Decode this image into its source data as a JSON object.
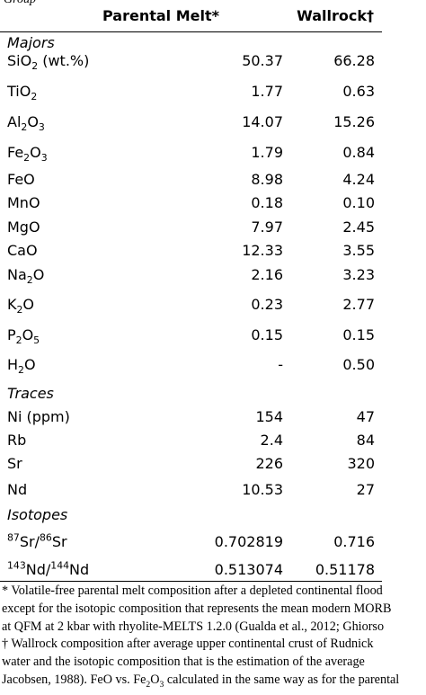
{
  "caption_fragment": "Group",
  "header": {
    "parental_melt": "Parental Melt*",
    "wallrock": "Wallrock†"
  },
  "sections": [
    {
      "title": "Majors",
      "rows": [
        {
          "parts": [
            [
              "SiO",
              ""
            ],
            [
              "2",
              "sub"
            ],
            [
              " (wt.%)",
              ""
            ]
          ],
          "parental_melt": "50.37",
          "wallrock": "66.28"
        },
        {
          "parts": [
            [
              "TiO",
              ""
            ],
            [
              "2",
              "sub"
            ]
          ],
          "parental_melt": "1.77",
          "wallrock": "0.63"
        },
        {
          "parts": [
            [
              "Al",
              ""
            ],
            [
              "2",
              "sub"
            ],
            [
              "O",
              ""
            ],
            [
              "3",
              "sub"
            ]
          ],
          "parental_melt": "14.07",
          "wallrock": "15.26"
        },
        {
          "parts": [
            [
              "Fe",
              ""
            ],
            [
              "2",
              "sub"
            ],
            [
              "O",
              ""
            ],
            [
              "3",
              "sub"
            ]
          ],
          "parental_melt": "1.79",
          "wallrock": "0.84"
        },
        {
          "parts": [
            [
              "FeO",
              ""
            ]
          ],
          "parental_melt": "8.98",
          "wallrock": "4.24"
        },
        {
          "parts": [
            [
              "MnO",
              ""
            ]
          ],
          "parental_melt": "0.18",
          "wallrock": "0.10"
        },
        {
          "parts": [
            [
              "MgO",
              ""
            ]
          ],
          "parental_melt": "7.97",
          "wallrock": "2.45"
        },
        {
          "parts": [
            [
              "CaO",
              ""
            ]
          ],
          "parental_melt": "12.33",
          "wallrock": "3.55"
        },
        {
          "parts": [
            [
              "Na",
              ""
            ],
            [
              "2",
              "sub"
            ],
            [
              "O",
              ""
            ]
          ],
          "parental_melt": "2.16",
          "wallrock": "3.23"
        },
        {
          "parts": [
            [
              "K",
              ""
            ],
            [
              "2",
              "sub"
            ],
            [
              "O",
              ""
            ]
          ],
          "parental_melt": "0.23",
          "wallrock": "2.77"
        },
        {
          "parts": [
            [
              "P",
              ""
            ],
            [
              "2",
              "sub"
            ],
            [
              "O",
              ""
            ],
            [
              "5",
              "sub"
            ]
          ],
          "parental_melt": "0.15",
          "wallrock": "0.15"
        },
        {
          "parts": [
            [
              "H",
              ""
            ],
            [
              "2",
              "sub"
            ],
            [
              "O",
              ""
            ]
          ],
          "parental_melt": "-",
          "wallrock": "0.50"
        }
      ]
    },
    {
      "title": "Traces",
      "rows": [
        {
          "parts": [
            [
              "Ni (ppm)",
              ""
            ]
          ],
          "parental_melt": "154",
          "wallrock": "47"
        },
        {
          "parts": [
            [
              "Rb",
              ""
            ]
          ],
          "parental_melt": "2.4",
          "wallrock": "84"
        },
        {
          "parts": [
            [
              "Sr",
              ""
            ]
          ],
          "parental_melt": "226",
          "wallrock": "320"
        },
        {
          "parts": [
            [
              "Nd",
              ""
            ]
          ],
          "parental_melt": "10.53",
          "wallrock": "27"
        }
      ]
    },
    {
      "title": "Isotopes",
      "rows": [
        {
          "parts": [
            [
              "87",
              "sup"
            ],
            [
              "Sr/",
              ""
            ],
            [
              "86",
              "sup"
            ],
            [
              "Sr",
              ""
            ]
          ],
          "parental_melt": "0.702819",
          "wallrock": "0.716"
        },
        {
          "parts": [
            [
              "143",
              "sup"
            ],
            [
              "Nd/",
              ""
            ],
            [
              "144",
              "sup"
            ],
            [
              "Nd",
              ""
            ]
          ],
          "parental_melt": "0.513074",
          "wallrock": "0.51178"
        }
      ]
    }
  ],
  "footnote_lines": [
    [
      [
        "* Volatile-free parental melt composition after a depleted continental flood",
        ""
      ]
    ],
    [
      [
        "except for the isotopic composition that represents the mean modern MORB",
        ""
      ]
    ],
    [
      [
        "at QFM at 2 kbar with rhyolite-MELTS 1.2.0 (Gualda et al., 2012; Ghiorso",
        ""
      ]
    ],
    [
      [
        "† Wallrock composition after average upper continental crust of Rudnick",
        ""
      ]
    ],
    [
      [
        "water and the isotopic composition that is the estimation of the average",
        ""
      ]
    ],
    [
      [
        "Jacobsen, 1988). FeO vs. Fe",
        ""
      ],
      [
        "2",
        "sub"
      ],
      [
        "O",
        ""
      ],
      [
        "3",
        "sub"
      ],
      [
        " calculated in the same way as for the parental",
        ""
      ]
    ]
  ]
}
